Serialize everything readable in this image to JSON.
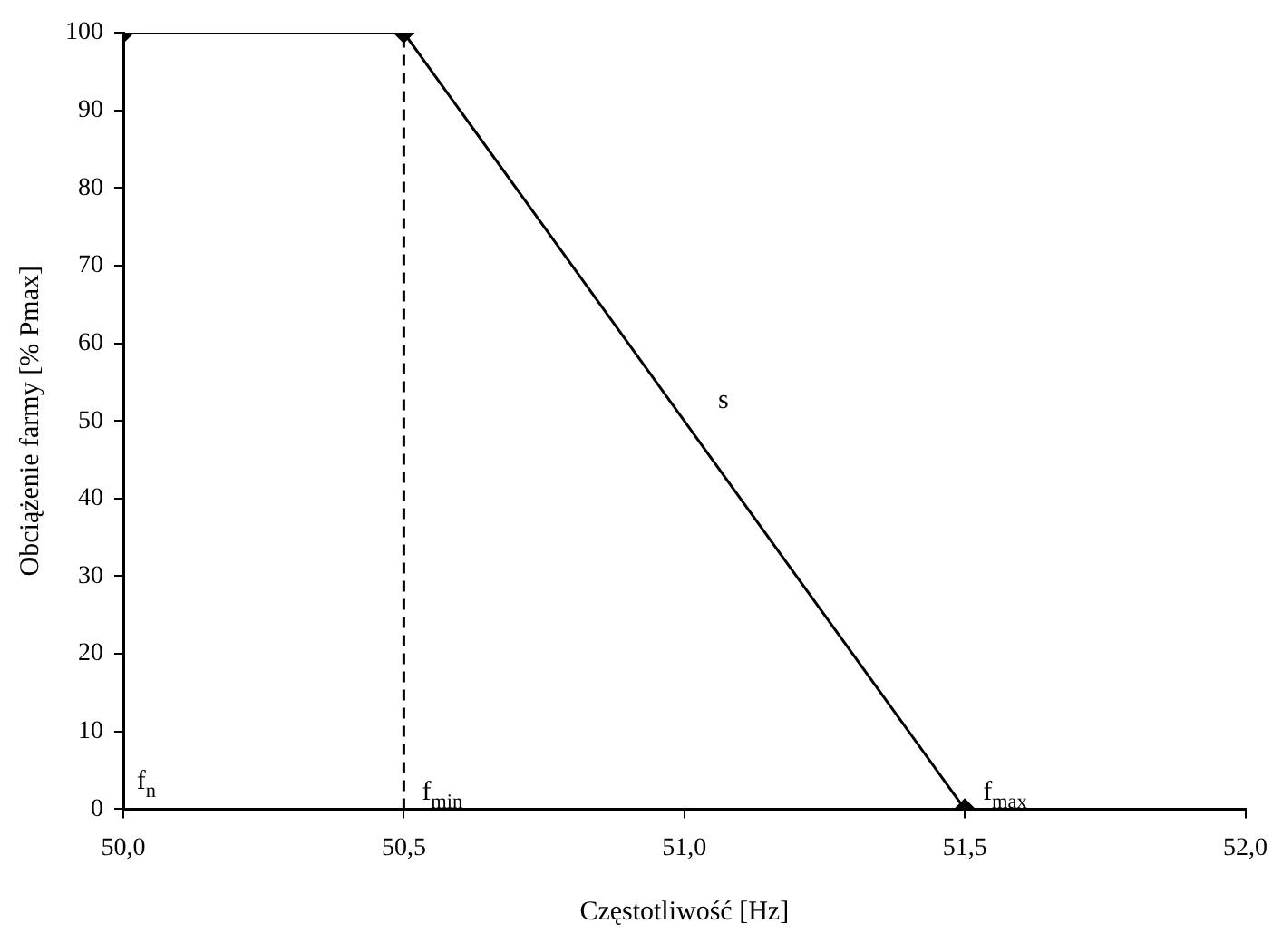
{
  "chart_data": {
    "type": "line",
    "xlabel": "Częstotliwość [Hz]",
    "ylabel": "Obciążenie farmy [% Pmax]",
    "x": [
      50,
      50.5,
      51.5
    ],
    "series": [
      {
        "color": "#000000",
        "values": [
          100,
          100,
          0
        ]
      }
    ],
    "xlim": [
      50,
      52
    ],
    "xticks": [
      {
        "value": 50,
        "label": "50,0"
      },
      {
        "value": 50.5,
        "label": "50,5"
      },
      {
        "value": 51,
        "label": "51,0"
      },
      {
        "value": 51.5,
        "label": "51,5"
      },
      {
        "value": 52,
        "label": "52,0"
      }
    ],
    "ylim": [
      0,
      100
    ],
    "yticks": [
      0,
      10,
      20,
      30,
      40,
      50,
      60,
      70,
      80,
      90,
      100
    ],
    "ref_lines": [
      {
        "axis": "x",
        "value": 50.5,
        "color": "#000000",
        "line_style": "dashed"
      }
    ],
    "annotations": [
      "f$_{n}$",
      {
        "text": "f$_{min}$",
        "x": 50.5,
        "y": 0
      },
      {
        "text": "f$_{max}$",
        "x": 51.5,
        "y": 0
      },
      "s"
    ],
    "grid": false,
    "legend": false,
    "marker": "diamond",
    "line_style": "solid"
  }
}
